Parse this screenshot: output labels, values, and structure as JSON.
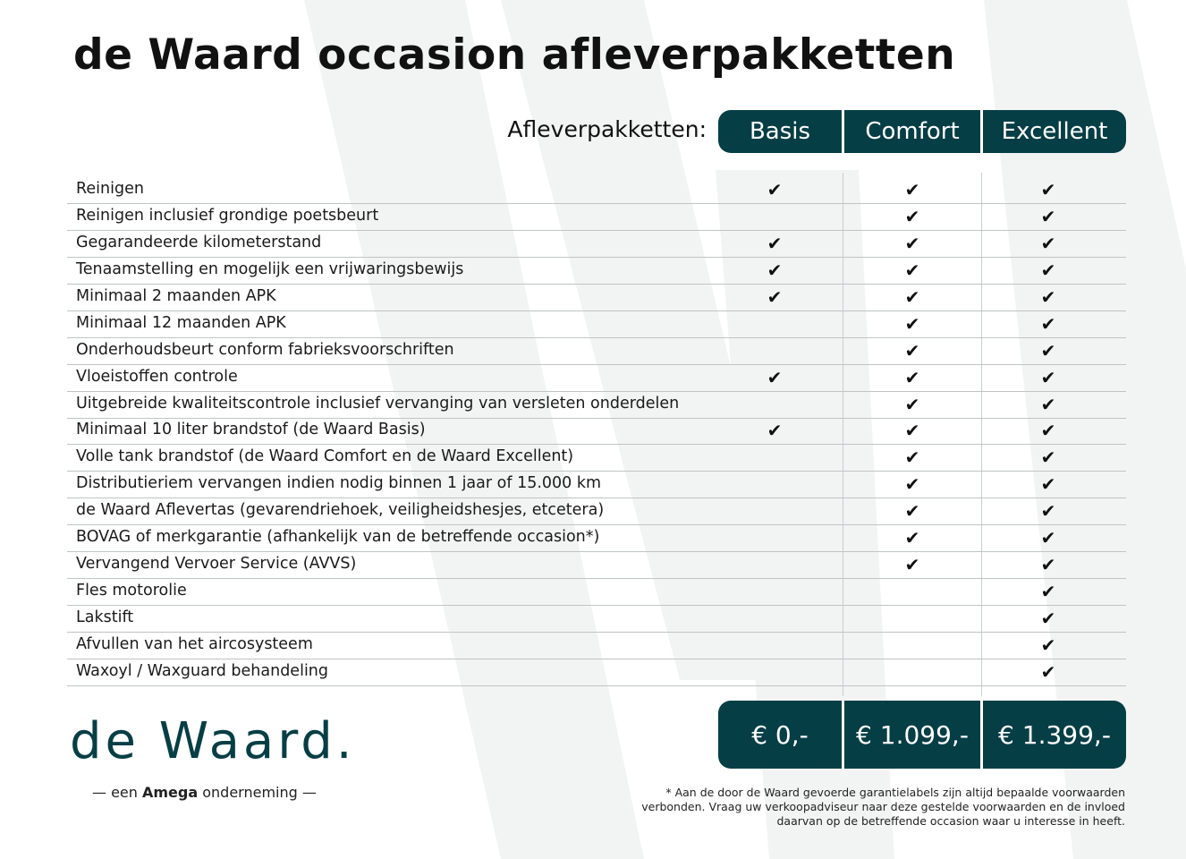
{
  "title": "de Waard occasion afleverpakketten",
  "packages_label": "Afleverpakketten:",
  "packages": [
    "Basis",
    "Comfort",
    "Excellent"
  ],
  "prices": [
    "€ 0,-",
    "€ 1.099,-",
    "€ 1.399,-"
  ],
  "accent_color": "#063e45",
  "check_icon": "checkmark-icon",
  "rows": [
    {
      "label": "Reinigen",
      "included": [
        true,
        true,
        true
      ]
    },
    {
      "label": "Reinigen inclusief grondige poetsbeurt",
      "included": [
        false,
        true,
        true
      ]
    },
    {
      "label": "Gegarandeerde kilometerstand",
      "included": [
        true,
        true,
        true
      ]
    },
    {
      "label": "Tenaamstelling en mogelijk een vrijwaringsbewijs",
      "included": [
        true,
        true,
        true
      ]
    },
    {
      "label": "Minimaal 2 maanden APK",
      "included": [
        true,
        true,
        true
      ]
    },
    {
      "label": "Minimaal 12 maanden APK",
      "included": [
        false,
        true,
        true
      ]
    },
    {
      "label": "Onderhoudsbeurt conform fabrieksvoorschriften",
      "included": [
        false,
        true,
        true
      ]
    },
    {
      "label": "Vloeistoffen controle",
      "included": [
        true,
        true,
        true
      ]
    },
    {
      "label": "Uitgebreide kwaliteitscontrole inclusief vervanging van versleten onderdelen",
      "included": [
        false,
        true,
        true
      ]
    },
    {
      "label": "Minimaal 10 liter brandstof (de Waard Basis)",
      "included": [
        true,
        true,
        true
      ]
    },
    {
      "label": "Volle tank brandstof (de Waard Comfort en de Waard Excellent)",
      "included": [
        false,
        true,
        true
      ]
    },
    {
      "label": "Distributieriem vervangen indien nodig binnen 1 jaar of 15.000 km",
      "included": [
        false,
        true,
        true
      ]
    },
    {
      "label": "de Waard Aflevertas (gevarendriehoek, veiligheidshesjes, etcetera)",
      "included": [
        false,
        true,
        true
      ]
    },
    {
      "label": "BOVAG of merkgarantie (afhankelijk van de betreffende occasion*)",
      "included": [
        false,
        true,
        true
      ]
    },
    {
      "label": "Vervangend Vervoer Service (AVVS)",
      "included": [
        false,
        true,
        true
      ]
    },
    {
      "label": "Fles motorolie",
      "included": [
        false,
        false,
        true
      ]
    },
    {
      "label": "Lakstift",
      "included": [
        false,
        false,
        true
      ]
    },
    {
      "label": "Afvullen van het aircosysteem",
      "included": [
        false,
        false,
        true
      ]
    },
    {
      "label": "Waxoyl / Waxguard behandeling",
      "included": [
        false,
        false,
        true
      ]
    }
  ],
  "logo": "de Waard.",
  "tagline": {
    "pre": "— een ",
    "brand": "Amega",
    "post": " onderneming —"
  },
  "footnote": "* Aan de door de Waard gevoerde garantielabels zijn altijd bepaalde voorwaarden verbonden. Vraag uw verkoopadviseur naar deze gestelde voorwaarden en de invloed daarvan op de betreffende occasion waar u interesse in heeft."
}
